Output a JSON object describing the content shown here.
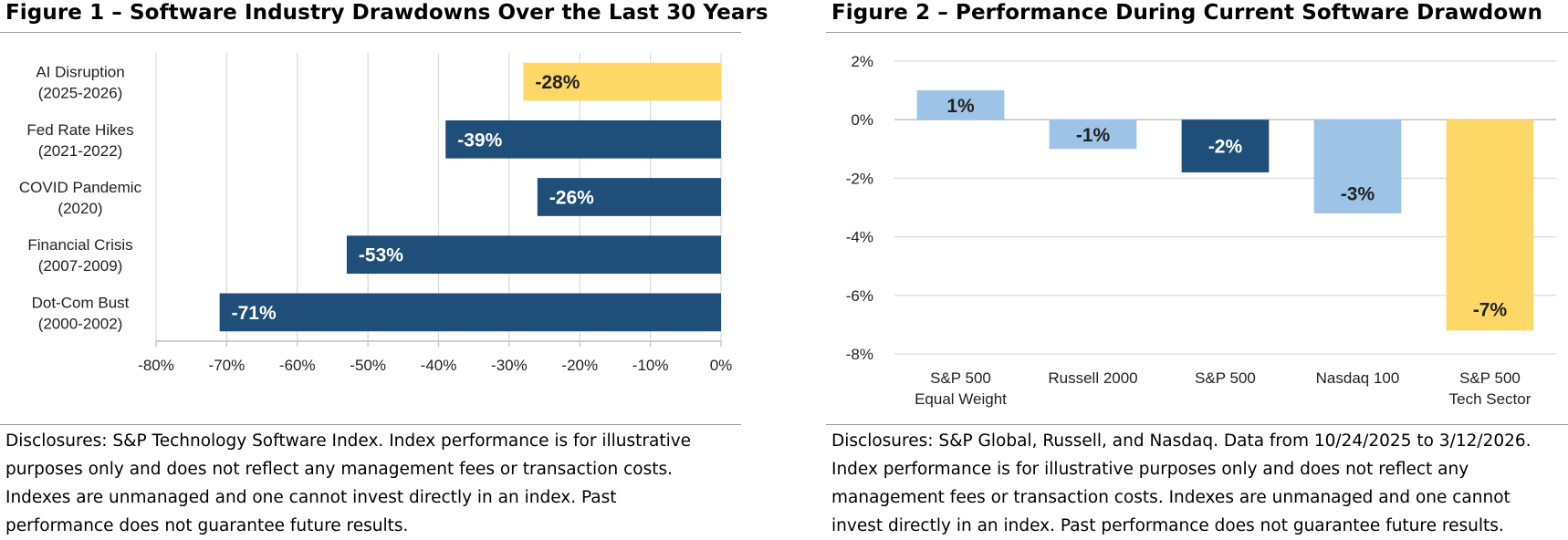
{
  "figure1": {
    "title": "Figure 1 – Software Industry Drawdowns Over the Last 30 Years",
    "disclosure": "Disclosures: S&P Technology Software Index. Index performance is for illustrative\npurposes only and does not reflect any management fees or transaction costs.\nIndexes are unmanaged and one cannot invest directly in an index. Past\nperformance does not guarantee future results."
  },
  "figure2": {
    "title": "Figure 2 – Performance During Current Software Drawdown",
    "disclosure": "Disclosures: S&P Global, Russell, and Nasdaq. Data from 10/24/2025 to 3/12/2026.\nIndex performance is for illustrative purposes only and does not reflect any\nmanagement fees or transaction costs. Indexes are unmanaged and one cannot\ninvest directly in an index. Past performance does not guarantee future results."
  },
  "chart_data": [
    {
      "type": "bar",
      "orientation": "horizontal",
      "title": "Figure 1 – Software Industry Drawdowns Over the Last 30 Years",
      "categories": [
        [
          "AI Disruption",
          "(2025-2026)"
        ],
        [
          "Fed Rate Hikes",
          "(2021-2022)"
        ],
        [
          "COVID Pandemic",
          "(2020)"
        ],
        [
          "Financial Crisis",
          "(2007-2009)"
        ],
        [
          "Dot-Com Bust",
          "(2000-2002)"
        ]
      ],
      "values": [
        -28,
        -39,
        -26,
        -53,
        -71
      ],
      "data_labels": [
        "-28%",
        "-39%",
        "-26%",
        "-53%",
        "-71%"
      ],
      "bar_colors": [
        "#fdd867",
        "#1f4e79",
        "#1f4e79",
        "#1f4e79",
        "#1f4e79"
      ],
      "label_colors": [
        "#222222",
        "#ffffff",
        "#ffffff",
        "#ffffff",
        "#ffffff"
      ],
      "xlim": [
        -80,
        0
      ],
      "xticks": [
        -80,
        -70,
        -60,
        -50,
        -40,
        -30,
        -20,
        -10,
        0
      ],
      "xtick_labels": [
        "-80%",
        "-70%",
        "-60%",
        "-50%",
        "-40%",
        "-30%",
        "-20%",
        "-10%",
        "0%"
      ],
      "grid": "vertical"
    },
    {
      "type": "bar",
      "orientation": "vertical",
      "title": "Figure 2 – Performance During Current Software Drawdown",
      "categories": [
        [
          "S&P 500",
          "Equal Weight"
        ],
        [
          "Russell 2000"
        ],
        [
          "S&P 500"
        ],
        [
          "Nasdaq 100"
        ],
        [
          "S&P 500",
          "Tech Sector"
        ]
      ],
      "values": [
        1.0,
        -1.0,
        -1.8,
        -3.2,
        -7.2
      ],
      "data_labels": [
        "1%",
        "-1%",
        "-2%",
        "-3%",
        "-7%"
      ],
      "bar_colors": [
        "#9dc3e6",
        "#9dc3e6",
        "#1f4e79",
        "#9dc3e6",
        "#fdd867"
      ],
      "label_colors": [
        "#222222",
        "#222222",
        "#ffffff",
        "#222222",
        "#222222"
      ],
      "ylim": [
        -8,
        2
      ],
      "yticks": [
        2,
        0,
        -2,
        -4,
        -6,
        -8
      ],
      "ytick_labels": [
        "2%",
        "0%",
        "-2%",
        "-4%",
        "-6%",
        "-8%"
      ],
      "grid": "horizontal"
    }
  ]
}
